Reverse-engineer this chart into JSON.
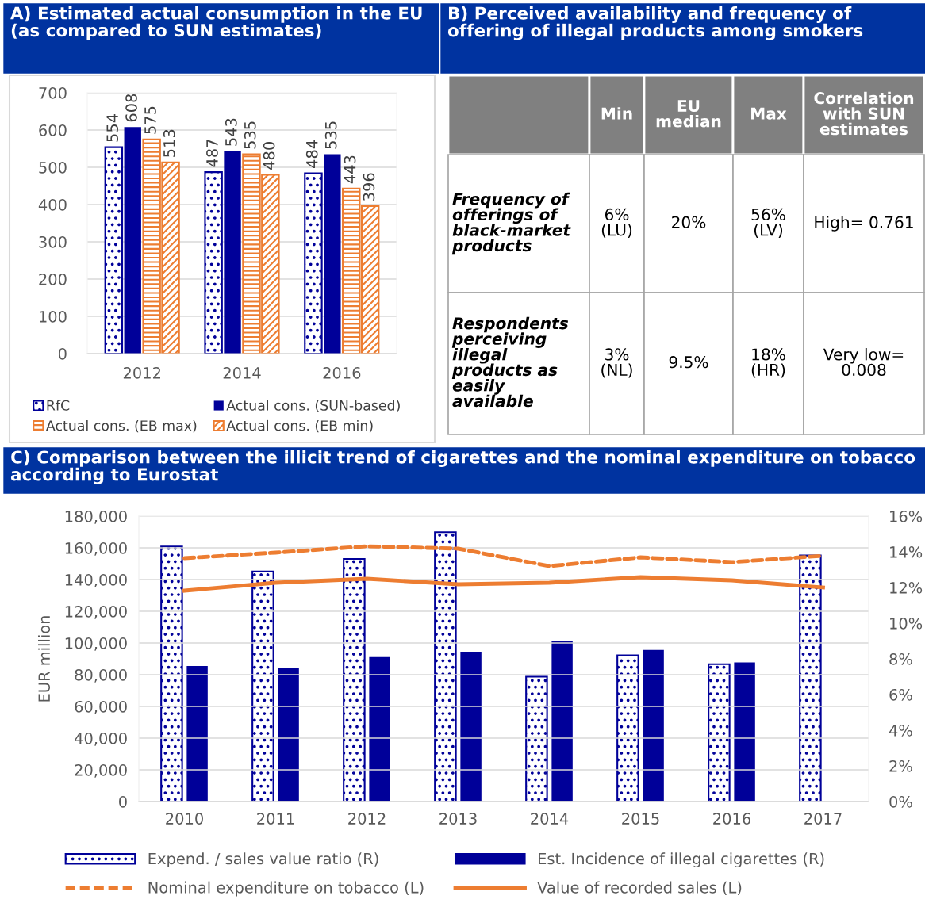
{
  "chart_data": [
    {
      "type": "bar",
      "title": "A) Estimated actual consumption in the EU (as compared to SUN estimates)",
      "categories": [
        "2012",
        "2014",
        "2016"
      ],
      "series": [
        {
          "name": "RfC",
          "color": "#000099",
          "values": [
            554,
            487,
            484
          ]
        },
        {
          "name": "Actual cons. (SUN-based)",
          "color": "#000099",
          "values": [
            608,
            543,
            535
          ]
        },
        {
          "name": "Actual cons. (EB max)",
          "color": "#ed7d31",
          "values": [
            575,
            535,
            443
          ]
        },
        {
          "name": "Actual cons. (EB min)",
          "color": "#ed7d31",
          "values": [
            513,
            480,
            396
          ]
        }
      ],
      "ylim": [
        0,
        700
      ],
      "yticks": [
        0,
        100,
        200,
        300,
        400,
        500,
        600,
        700
      ],
      "grid": "y",
      "legend": "bottom",
      "data_labels": true
    },
    {
      "type": "other",
      "title": "B) Perceived availability and frequency of offering of illegal products among smokers",
      "categories": [
        null,
        "Min",
        "EU median",
        "Max",
        "Correlation with SUN estimates"
      ],
      "y_categories": [
        "Frequency of offerings of black-market products",
        "Respondents perceiving illegal products as easily available"
      ],
      "cell_labels": [
        [
          "6% (LU)",
          "20%",
          "56% (LV)",
          "High= 0.761"
        ],
        [
          "3% (NL)",
          "9.5%",
          "18% (HR)",
          "Very low= 0.008"
        ]
      ]
    },
    {
      "type": "bar",
      "title": "C) Comparison between the illicit trend of cigarettes and the nominal expenditure on tobacco according to Eurostat",
      "categories": [
        "2010",
        "2011",
        "2012",
        "2013",
        "2014",
        "2015",
        "2016",
        "2017"
      ],
      "series": [
        {
          "name": "Expend. / sales value ratio (R)",
          "type": "bar",
          "axis": "y2",
          "color": "#000099",
          "values": [
            14.3,
            12.9,
            13.6,
            15.1,
            7.0,
            8.2,
            7.7,
            13.8
          ]
        },
        {
          "name": "Est. Incidence of illegal cigarettes (R)",
          "type": "bar",
          "axis": "y2",
          "color": "#000099",
          "values": [
            7.6,
            7.5,
            8.1,
            8.4,
            9.0,
            8.5,
            7.8,
            null
          ]
        },
        {
          "name": "Nominal expenditure on tobacco (L)",
          "type": "line",
          "line_style": "dashed",
          "color": "#ed7d31",
          "values": [
            153500,
            157000,
            161000,
            159500,
            148500,
            154000,
            151000,
            155000
          ]
        },
        {
          "name": "Value of recorded sales (L)",
          "type": "line",
          "line_style": "solid",
          "color": "#ed7d31",
          "values": [
            133000,
            138000,
            140500,
            137000,
            138000,
            141500,
            139500,
            135000
          ]
        }
      ],
      "ylabel": "EUR million",
      "ylim": [
        0,
        180000
      ],
      "yticks": [
        {
          "value": 0,
          "label": "0"
        },
        {
          "value": 20000,
          "label": "20,000"
        },
        {
          "value": 40000,
          "label": "40,000"
        },
        {
          "value": 60000,
          "label": "60,000"
        },
        {
          "value": 80000,
          "label": "80,000"
        },
        {
          "value": 100000,
          "label": "100,000"
        },
        {
          "value": 120000,
          "label": "120,000"
        },
        {
          "value": 140000,
          "label": "140,000"
        },
        {
          "value": 160000,
          "label": "160,000"
        },
        {
          "value": 180000,
          "label": "180,000"
        }
      ],
      "y2lim": [
        0,
        16
      ],
      "y2ticks": [
        {
          "value": 0,
          "label": "0%"
        },
        {
          "value": 2,
          "label": "2%"
        },
        {
          "value": 4,
          "label": "4%"
        },
        {
          "value": 6,
          "label": "6%"
        },
        {
          "value": 8,
          "label": "8%"
        },
        {
          "value": 10,
          "label": "10%"
        },
        {
          "value": 12,
          "label": "12%"
        },
        {
          "value": 14,
          "label": "14%"
        },
        {
          "value": 16,
          "label": "16%"
        }
      ],
      "grid": "y",
      "legend": "bottom"
    }
  ]
}
